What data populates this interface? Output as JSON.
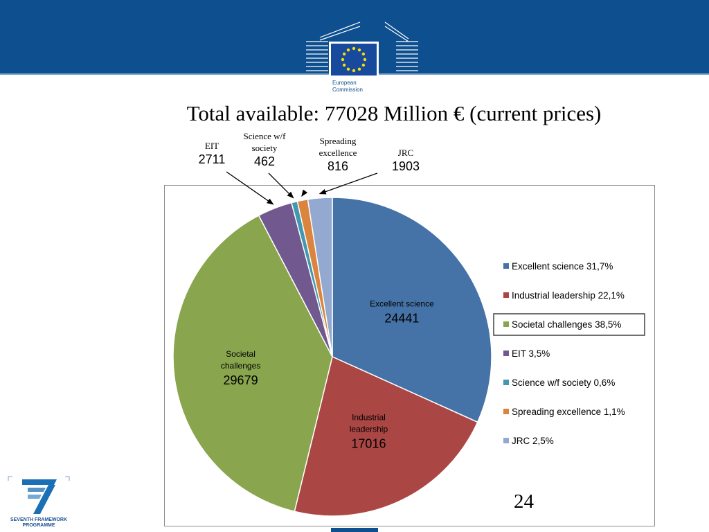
{
  "title": "Total available: 77028 Million € (current prices)",
  "logo_text": "European Commission",
  "fp7_logo_text": "SEVENTH FRAMEWORK PROGRAMME",
  "page_number": "24",
  "chart_data": {
    "type": "pie",
    "categories": [
      "Excellent science",
      "Industrial leadership",
      "Societal challenges",
      "EIT",
      "Science w/f society",
      "Spreading excellence",
      "JRC"
    ],
    "values": [
      24441,
      17016,
      29679,
      2711,
      462,
      816,
      1903
    ],
    "legend_labels": [
      "Excellent science  31,7%",
      "Industrial leadership  22,1%",
      "Societal challenges  38,5%",
      "EIT  3,5%",
      "Science w/f society  0,6%",
      "Spreading excellence  1,1%",
      "JRC  2,5%"
    ],
    "colors": [
      "#4572a7",
      "#aa4643",
      "#89a54e",
      "#71588f",
      "#4198af",
      "#db843d",
      "#93a9cf"
    ],
    "legend_position": "right",
    "highlighted_legend_entry": "Societal challenges",
    "inside_labels": [
      {
        "lines": [
          "Excellent science"
        ],
        "value": "24441"
      },
      {
        "lines": [
          "Industrial",
          "leadership"
        ],
        "value": "17016"
      },
      {
        "lines": [
          "Societal",
          "challenges"
        ],
        "value": "29679"
      }
    ],
    "callouts": [
      {
        "lines": [
          "EIT"
        ],
        "value": "2711"
      },
      {
        "lines": [
          "Science w/f",
          "society"
        ],
        "value": "462"
      },
      {
        "lines": [
          "Spreading",
          "excellence"
        ],
        "value": "816"
      },
      {
        "lines": [
          "JRC"
        ],
        "value": "1903"
      }
    ]
  }
}
